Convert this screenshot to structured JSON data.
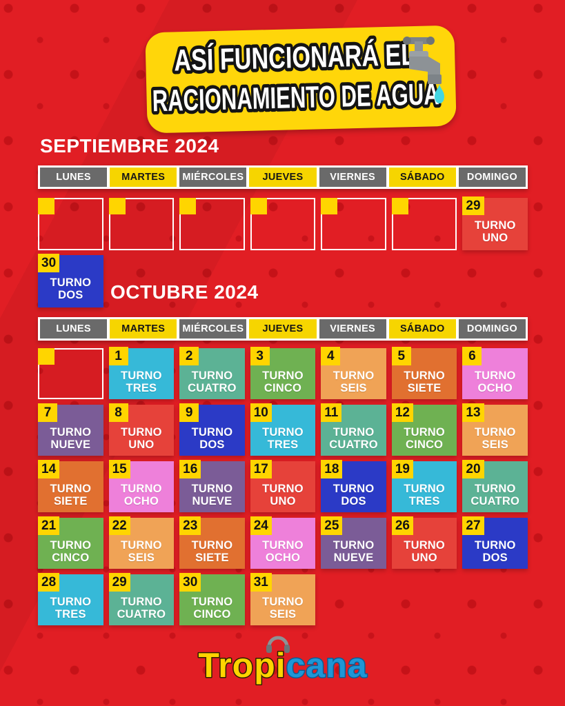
{
  "title": {
    "line1": "ASÍ FUNCIONARÁ EL",
    "line2": "RACIONAMIENTO DE AGUA"
  },
  "weekdays": [
    {
      "label": "LUNES",
      "variant": "gray"
    },
    {
      "label": "MARTES",
      "variant": "yellow"
    },
    {
      "label": "MIÉRCOLES",
      "variant": "gray"
    },
    {
      "label": "JUEVES",
      "variant": "yellow"
    },
    {
      "label": "VIERNES",
      "variant": "gray"
    },
    {
      "label": "SÁBADO",
      "variant": "yellow"
    },
    {
      "label": "DOMINGO",
      "variant": "gray"
    }
  ],
  "turno_colors": {
    "uno": "#e6423a",
    "dos": "#2b3ac6",
    "tres": "#36b9d8",
    "cuatro": "#5cb295",
    "cinco": "#6fb152",
    "seis": "#f0a356",
    "siete": "#e17030",
    "ocho": "#ee80da",
    "nueve": "#7b5c97"
  },
  "accent_colors": {
    "page_red": "#e11e24",
    "badge_yellow": "#ffd500",
    "header_gray": "#6a6a6a",
    "logo_yellow": "#ffd400",
    "logo_blue": "#1f96d6",
    "drop_cyan": "#43d6e2"
  },
  "september": {
    "heading": "SEPTIEMBRE 2024",
    "rows": [
      [
        {
          "type": "outline"
        },
        {
          "type": "outline"
        },
        {
          "type": "outline"
        },
        {
          "type": "outline"
        },
        {
          "type": "outline"
        },
        {
          "type": "outline"
        },
        {
          "type": "turno",
          "day": "29",
          "t1": "TURNO",
          "t2": "UNO",
          "color": "uno"
        }
      ],
      [
        {
          "type": "turno",
          "day": "30",
          "t1": "TURNO",
          "t2": "DOS",
          "color": "dos"
        },
        {
          "type": "blank"
        },
        {
          "type": "blank"
        },
        {
          "type": "blank"
        },
        {
          "type": "blank"
        },
        {
          "type": "blank"
        },
        {
          "type": "blank"
        }
      ]
    ]
  },
  "october": {
    "heading": "OCTUBRE 2024",
    "rows": [
      [
        {
          "type": "outline"
        },
        {
          "type": "turno",
          "day": "1",
          "t1": "TURNO",
          "t2": "TRES",
          "color": "tres"
        },
        {
          "type": "turno",
          "day": "2",
          "t1": "TURNO",
          "t2": "CUATRO",
          "color": "cuatro"
        },
        {
          "type": "turno",
          "day": "3",
          "t1": "TURNO",
          "t2": "CINCO",
          "color": "cinco"
        },
        {
          "type": "turno",
          "day": "4",
          "t1": "TURNO",
          "t2": "SEIS",
          "color": "seis"
        },
        {
          "type": "turno",
          "day": "5",
          "t1": "TURNO",
          "t2": "SIETE",
          "color": "siete"
        },
        {
          "type": "turno",
          "day": "6",
          "t1": "TURNO",
          "t2": "OCHO",
          "color": "ocho"
        }
      ],
      [
        {
          "type": "turno",
          "day": "7",
          "t1": "TURNO",
          "t2": "NUEVE",
          "color": "nueve"
        },
        {
          "type": "turno",
          "day": "8",
          "t1": "TURNO",
          "t2": "UNO",
          "color": "uno"
        },
        {
          "type": "turno",
          "day": "9",
          "t1": "TURNO",
          "t2": "DOS",
          "color": "dos"
        },
        {
          "type": "turno",
          "day": "10",
          "t1": "TURNO",
          "t2": "TRES",
          "color": "tres"
        },
        {
          "type": "turno",
          "day": "11",
          "t1": "TURNO",
          "t2": "CUATRO",
          "color": "cuatro"
        },
        {
          "type": "turno",
          "day": "12",
          "t1": "TURNO",
          "t2": "CINCO",
          "color": "cinco"
        },
        {
          "type": "turno",
          "day": "13",
          "t1": "TURNO",
          "t2": "SEIS",
          "color": "seis"
        }
      ],
      [
        {
          "type": "turno",
          "day": "14",
          "t1": "TURNO",
          "t2": "SIETE",
          "color": "siete"
        },
        {
          "type": "turno",
          "day": "15",
          "t1": "TURNO",
          "t2": "OCHO",
          "color": "ocho"
        },
        {
          "type": "turno",
          "day": "16",
          "t1": "TURNO",
          "t2": "NUEVE",
          "color": "nueve"
        },
        {
          "type": "turno",
          "day": "17",
          "t1": "TURNO",
          "t2": "UNO",
          "color": "uno"
        },
        {
          "type": "turno",
          "day": "18",
          "t1": "TURNO",
          "t2": "DOS",
          "color": "dos"
        },
        {
          "type": "turno",
          "day": "19",
          "t1": "TURNO",
          "t2": "TRES",
          "color": "tres"
        },
        {
          "type": "turno",
          "day": "20",
          "t1": "TURNO",
          "t2": "CUATRO",
          "color": "cuatro"
        }
      ],
      [
        {
          "type": "turno",
          "day": "21",
          "t1": "TURNO",
          "t2": "CINCO",
          "color": "cinco"
        },
        {
          "type": "turno",
          "day": "22",
          "t1": "TURNO",
          "t2": "SEIS",
          "color": "seis"
        },
        {
          "type": "turno",
          "day": "23",
          "t1": "TURNO",
          "t2": "SIETE",
          "color": "siete"
        },
        {
          "type": "turno",
          "day": "24",
          "t1": "TURNO",
          "t2": "OCHO",
          "color": "ocho"
        },
        {
          "type": "turno",
          "day": "25",
          "t1": "TURNO",
          "t2": "NUEVE",
          "color": "nueve"
        },
        {
          "type": "turno",
          "day": "26",
          "t1": "TURNO",
          "t2": "UNO",
          "color": "uno"
        },
        {
          "type": "turno",
          "day": "27",
          "t1": "TURNO",
          "t2": "DOS",
          "color": "dos"
        }
      ],
      [
        {
          "type": "turno",
          "day": "28",
          "t1": "TURNO",
          "t2": "TRES",
          "color": "tres"
        },
        {
          "type": "turno",
          "day": "29",
          "t1": "TURNO",
          "t2": "CUATRO",
          "color": "cuatro"
        },
        {
          "type": "turno",
          "day": "30",
          "t1": "TURNO",
          "t2": "CINCO",
          "color": "cinco"
        },
        {
          "type": "turno",
          "day": "31",
          "t1": "TURNO",
          "t2": "SEIS",
          "color": "seis"
        },
        {
          "type": "blank"
        },
        {
          "type": "blank"
        },
        {
          "type": "blank"
        }
      ]
    ]
  },
  "logo": {
    "part1": "Tropi",
    "part2": "cana"
  }
}
